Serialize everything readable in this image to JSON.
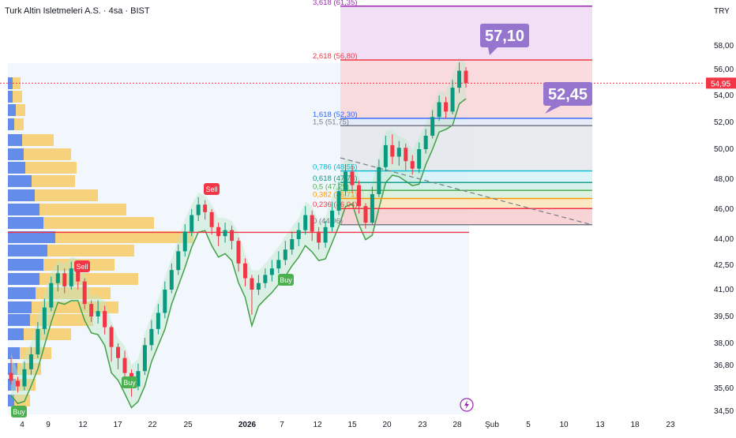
{
  "header": {
    "title": "Turk Altin Isletmeleri A.S. · 4sa · BIST",
    "currency": "TRY"
  },
  "chart_data": {
    "type": "candlestick",
    "title": "Turk Altin Isletmeleri A.S. · 4sa · BIST",
    "ylim": [
      34.3,
      63.2
    ],
    "y_ticks": [
      "34,50",
      "35,60",
      "36,80",
      "38,00",
      "39,50",
      "41,00",
      "42,50",
      "44,00",
      "46,00",
      "48,00",
      "50,00",
      "52,00",
      "54,00",
      "56,00",
      "58,00"
    ],
    "y_tick_values": [
      34.5,
      35.6,
      36.8,
      38.0,
      39.5,
      41.0,
      42.5,
      44.0,
      46.0,
      48.0,
      50.0,
      52.0,
      54.0,
      56.0,
      58.0
    ],
    "x_ticks": [
      "4",
      "9",
      "12",
      "17",
      "22",
      "25",
      "2026",
      "7",
      "12",
      "15",
      "20",
      "23",
      "28",
      "Şub",
      "5",
      "10",
      "13",
      "18",
      "23"
    ],
    "last_price": {
      "value": 54.95,
      "label": "54,95"
    },
    "fibonacci": [
      {
        "level": "0",
        "label": "0 (44,96)",
        "value": 44.96,
        "color": "#787b86"
      },
      {
        "level": "0.236",
        "label": "0,236 (46,04)",
        "value": 46.04,
        "color": "#f23645"
      },
      {
        "level": "0.382",
        "label": "0,382 (46,71)",
        "value": 46.71,
        "color": "#ff9800"
      },
      {
        "level": "0.5",
        "label": "0,5 (47,25)",
        "value": 47.25,
        "color": "#4caf50"
      },
      {
        "level": "0.618",
        "label": "0,618 (47,78)",
        "value": 47.78,
        "color": "#089981"
      },
      {
        "level": "0.786",
        "label": "0,786 (48,55)",
        "value": 48.55,
        "color": "#00bcd4"
      },
      {
        "level": "1.5",
        "label": "1,5 (51,75)",
        "value": 51.75,
        "color": "#787b86"
      },
      {
        "level": "1.618",
        "label": "1,618 (52,30)",
        "value": 52.3,
        "color": "#2962ff"
      },
      {
        "level": "2.618",
        "label": "2,618 (56,80)",
        "value": 56.8,
        "color": "#f23645"
      },
      {
        "level": "3.618",
        "label": "3,618 (61,35)",
        "value": 61.35,
        "color": "#9c27b0"
      }
    ],
    "callouts": [
      {
        "label": "57,10",
        "value": 57.1
      },
      {
        "label": "52,45",
        "value": 52.45
      }
    ],
    "signals": [
      {
        "label": "Buy",
        "type": "buy"
      },
      {
        "label": "Sell",
        "type": "sell"
      },
      {
        "label": "Buy",
        "type": "buy"
      },
      {
        "label": "Sell",
        "type": "sell"
      },
      {
        "label": "Buy",
        "type": "buy"
      }
    ],
    "horizontal_line": {
      "value": 44.45,
      "color": "#f23645"
    },
    "candles": [
      [
        36.4,
        36.0,
        35.8,
        37.2
      ],
      [
        36.0,
        35.7,
        35.4,
        36.2
      ],
      [
        35.7,
        36.6,
        35.5,
        37.0
      ],
      [
        36.6,
        37.4,
        36.3,
        37.8
      ],
      [
        37.4,
        38.8,
        37.2,
        39.2
      ],
      [
        38.8,
        40.0,
        38.5,
        40.5
      ],
      [
        40.0,
        41.4,
        39.8,
        41.8
      ],
      [
        41.4,
        42.0,
        40.9,
        42.5
      ],
      [
        42.0,
        41.2,
        40.8,
        42.3
      ],
      [
        41.2,
        42.3,
        41.0,
        42.7
      ],
      [
        42.3,
        41.5,
        41.0,
        42.6
      ],
      [
        41.5,
        40.2,
        39.9,
        41.7
      ],
      [
        40.2,
        39.5,
        39.2,
        40.4
      ],
      [
        39.5,
        39.8,
        39.1,
        40.4
      ],
      [
        39.8,
        38.9,
        38.5,
        40.1
      ],
      [
        38.9,
        37.8,
        37.0,
        39.0
      ],
      [
        37.8,
        37.2,
        36.6,
        38.0
      ],
      [
        37.2,
        36.4,
        35.9,
        37.6
      ],
      [
        36.4,
        35.7,
        35.2,
        36.6
      ],
      [
        35.7,
        36.5,
        35.5,
        36.9
      ],
      [
        36.5,
        37.9,
        36.3,
        38.3
      ],
      [
        37.9,
        38.8,
        37.6,
        39.3
      ],
      [
        38.8,
        39.7,
        38.5,
        40.2
      ],
      [
        39.7,
        41.0,
        39.4,
        41.5
      ],
      [
        41.0,
        42.2,
        40.8,
        42.6
      ],
      [
        42.2,
        43.3,
        41.9,
        43.7
      ],
      [
        43.3,
        44.5,
        43.0,
        45.0
      ],
      [
        44.5,
        45.6,
        44.2,
        46.0
      ],
      [
        45.6,
        46.3,
        45.2,
        46.8
      ],
      [
        46.3,
        45.8,
        45.3,
        46.6
      ],
      [
        45.8,
        44.8,
        44.3,
        46.0
      ],
      [
        44.8,
        44.2,
        43.6,
        45.1
      ],
      [
        44.2,
        44.6,
        43.8,
        45.1
      ],
      [
        44.6,
        43.9,
        43.4,
        44.9
      ],
      [
        43.9,
        42.6,
        42.1,
        44.1
      ],
      [
        42.6,
        41.7,
        41.2,
        42.9
      ],
      [
        41.7,
        41.0,
        39.6,
        41.9
      ],
      [
        41.0,
        41.4,
        40.7,
        41.9
      ],
      [
        41.4,
        41.9,
        41.1,
        42.3
      ],
      [
        41.9,
        42.3,
        41.5,
        42.8
      ],
      [
        42.3,
        42.8,
        42.0,
        43.3
      ],
      [
        42.8,
        43.4,
        42.5,
        43.9
      ],
      [
        43.4,
        44.0,
        43.1,
        44.5
      ],
      [
        44.0,
        44.6,
        43.6,
        45.1
      ],
      [
        44.6,
        45.6,
        44.3,
        46.2
      ],
      [
        45.6,
        44.5,
        43.9,
        45.9
      ],
      [
        44.5,
        43.8,
        43.4,
        44.8
      ],
      [
        43.8,
        44.8,
        43.5,
        45.2
      ],
      [
        44.8,
        45.9,
        44.5,
        46.5
      ],
      [
        45.9,
        47.2,
        45.6,
        47.8
      ],
      [
        47.2,
        48.5,
        46.9,
        49.0
      ],
      [
        48.5,
        47.6,
        47.1,
        48.9
      ],
      [
        47.6,
        46.2,
        45.7,
        47.9
      ],
      [
        46.2,
        45.1,
        44.7,
        46.4
      ],
      [
        45.1,
        47.0,
        45.0,
        47.5
      ],
      [
        47.0,
        48.8,
        46.8,
        49.3
      ],
      [
        48.8,
        50.3,
        48.5,
        51.0
      ],
      [
        50.3,
        49.5,
        49.0,
        51.1
      ],
      [
        49.5,
        50.1,
        48.9,
        50.6
      ],
      [
        50.1,
        49.2,
        48.6,
        50.4
      ],
      [
        49.2,
        48.7,
        48.3,
        49.6
      ],
      [
        48.7,
        50.0,
        48.4,
        50.5
      ],
      [
        50.0,
        51.0,
        49.7,
        51.5
      ],
      [
        51.0,
        52.4,
        50.8,
        52.9
      ],
      [
        52.4,
        53.5,
        52.1,
        54.0
      ],
      [
        53.5,
        52.8,
        52.3,
        53.9
      ],
      [
        52.8,
        54.6,
        52.6,
        55.2
      ],
      [
        54.6,
        55.9,
        54.2,
        56.6
      ],
      [
        55.9,
        54.95,
        54.6,
        56.2
      ]
    ]
  }
}
